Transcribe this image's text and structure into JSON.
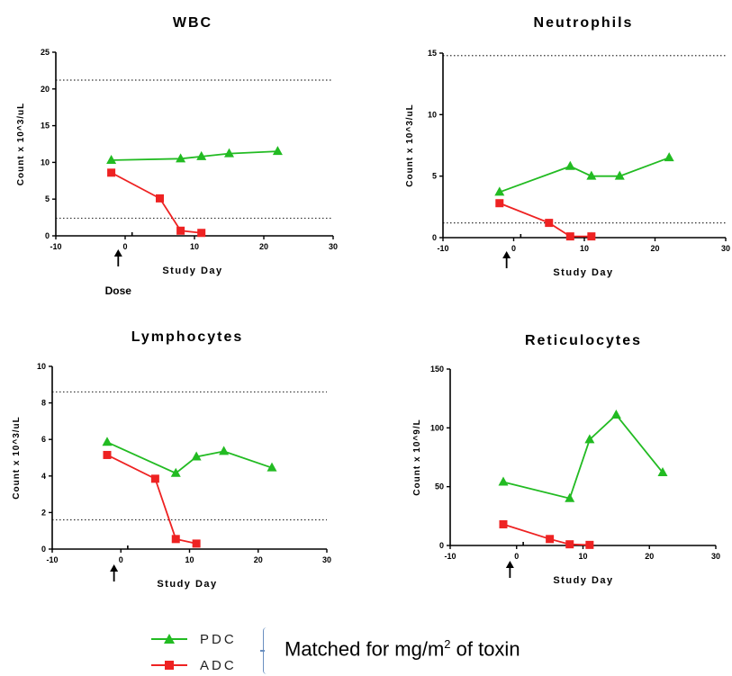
{
  "chart_data": [
    {
      "type": "line",
      "title": "WBC",
      "xlabel": "Study Day",
      "ylabel": "Count x 10^3/uL",
      "xlim": [
        -10,
        30
      ],
      "ylim": [
        0,
        25
      ],
      "xticks": [
        "-10",
        "0",
        "10",
        "20",
        "30"
      ],
      "yticks": [
        "0",
        "5",
        "10",
        "15",
        "20",
        "25"
      ],
      "reference_lines": [
        21.2,
        2.4
      ],
      "annotation": "Dose",
      "series": [
        {
          "name": "PDC",
          "color": "#22bb22",
          "marker": "triangle",
          "x": [
            -2,
            8,
            11,
            15,
            22
          ],
          "y": [
            10.3,
            10.5,
            10.8,
            11.2,
            11.5
          ]
        },
        {
          "name": "ADC",
          "color": "#ee2222",
          "marker": "square",
          "x": [
            -2,
            5,
            8,
            11
          ],
          "y": [
            8.6,
            5.1,
            0.7,
            0.4
          ]
        }
      ]
    },
    {
      "type": "line",
      "title": "Neutrophils",
      "xlabel": "Study Day",
      "ylabel": "Count x 10^3/uL",
      "xlim": [
        -10,
        30
      ],
      "ylim": [
        0,
        15
      ],
      "xticks": [
        "-10",
        "0",
        "10",
        "20",
        "30"
      ],
      "yticks": [
        "0",
        "5",
        "10",
        "15"
      ],
      "reference_lines": [
        14.8,
        1.2
      ],
      "series": [
        {
          "name": "PDC",
          "color": "#22bb22",
          "marker": "triangle",
          "x": [
            -2,
            8,
            11,
            15,
            22
          ],
          "y": [
            3.7,
            5.8,
            5.0,
            5.0,
            6.5
          ]
        },
        {
          "name": "ADC",
          "color": "#ee2222",
          "marker": "square",
          "x": [
            -2,
            5,
            8,
            11
          ],
          "y": [
            2.8,
            1.2,
            0.1,
            0.1
          ]
        }
      ]
    },
    {
      "type": "line",
      "title": "Lymphocytes",
      "xlabel": "Study Day",
      "ylabel": "Count x 10^3/uL",
      "xlim": [
        -10,
        30
      ],
      "ylim": [
        0,
        10
      ],
      "xticks": [
        "-10",
        "0",
        "10",
        "20",
        "30"
      ],
      "yticks": [
        "0",
        "2",
        "4",
        "6",
        "8",
        "10"
      ],
      "reference_lines": [
        8.6,
        1.6
      ],
      "series": [
        {
          "name": "PDC",
          "color": "#22bb22",
          "marker": "triangle",
          "x": [
            -2,
            8,
            11,
            15,
            22
          ],
          "y": [
            5.85,
            4.15,
            5.05,
            5.35,
            4.45
          ]
        },
        {
          "name": "ADC",
          "color": "#ee2222",
          "marker": "square",
          "x": [
            -2,
            5,
            8,
            11
          ],
          "y": [
            5.15,
            3.85,
            0.55,
            0.3
          ]
        }
      ]
    },
    {
      "type": "line",
      "title": "Reticulocytes",
      "xlabel": "Study Day",
      "ylabel": "Count x 10^9/L",
      "xlim": [
        -10,
        30
      ],
      "ylim": [
        0,
        150
      ],
      "xticks": [
        "-10",
        "0",
        "10",
        "20",
        "30"
      ],
      "yticks": [
        "0",
        "50",
        "100",
        "150"
      ],
      "reference_lines": [],
      "series": [
        {
          "name": "PDC",
          "color": "#22bb22",
          "marker": "triangle",
          "x": [
            -2,
            8,
            11,
            15,
            22
          ],
          "y": [
            54,
            40,
            90,
            111,
            62
          ]
        },
        {
          "name": "ADC",
          "color": "#ee2222",
          "marker": "square",
          "x": [
            -2,
            5,
            8,
            11
          ],
          "y": [
            18,
            5.5,
            1,
            0.5
          ]
        }
      ]
    }
  ],
  "legend": {
    "items": [
      {
        "label": "PDC",
        "color": "#22bb22",
        "marker": "triangle"
      },
      {
        "label": "ADC",
        "color": "#ee2222",
        "marker": "square"
      }
    ],
    "note_prefix": "Matched for mg/m",
    "note_sup": "2",
    "note_suffix": " of toxin"
  }
}
